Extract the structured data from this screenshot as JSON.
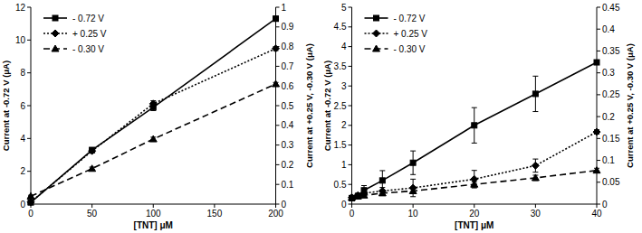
{
  "chart_data": [
    {
      "type": "line",
      "x_label": "[TNT] μM",
      "y_label": "Current at -0.72 V (μA)",
      "y2_label": "Current at +0.25 V, -0.30 V (μA)",
      "xlim": [
        0,
        200
      ],
      "xticks": [
        0,
        50,
        100,
        150,
        200
      ],
      "ylim": [
        0,
        12
      ],
      "yticks": [
        0,
        2,
        4,
        6,
        8,
        10,
        12
      ],
      "y2lim": [
        0,
        1
      ],
      "y2ticks": [
        0,
        0.1,
        0.2,
        0.3,
        0.4,
        0.5,
        0.6,
        0.7,
        0.8,
        0.9,
        1
      ],
      "legend": "upper left",
      "grid": false,
      "x": [
        0,
        50,
        100,
        200
      ],
      "series": [
        {
          "name": "- 0.72 V",
          "color": "#000000",
          "marker": "square",
          "line_style": "solid",
          "values": [
            0.1,
            3.3,
            5.9,
            11.3
          ],
          "errors": [
            0.05,
            0.12,
            0.2,
            0.15
          ]
        },
        {
          "name": "+ 0.25 V",
          "color": "#000000",
          "marker": "diamond",
          "line_style": "dotted",
          "axis": "y2",
          "values": [
            0.01,
            0.27,
            0.51,
            0.79
          ],
          "errors": [
            0.005,
            0.01,
            0.015,
            0.01
          ]
        },
        {
          "name": "- 0.30 V",
          "color": "#000000",
          "marker": "triangle",
          "line_style": "dashed",
          "axis": "y2",
          "values": [
            0.04,
            0.18,
            0.33,
            0.61
          ],
          "errors": [
            0.005,
            0.008,
            0.01,
            0.008
          ]
        }
      ]
    },
    {
      "type": "line",
      "x_label": "[TNT] μM",
      "y_label": "Current at -0.72 V (μA)",
      "y2_label": "Current at +0.25 V, -0.30 V (μA)",
      "xlim": [
        0,
        40
      ],
      "xticks": [
        0,
        10,
        20,
        30,
        40
      ],
      "ylim": [
        0,
        5
      ],
      "yticks": [
        0,
        0.5,
        1,
        1.5,
        2,
        2.5,
        3,
        3.5,
        4,
        4.5,
        5
      ],
      "y2lim": [
        0,
        0.45
      ],
      "y2ticks": [
        0,
        0.05,
        0.1,
        0.15,
        0.2,
        0.25,
        0.3,
        0.35,
        0.4,
        0.45
      ],
      "legend": "upper left",
      "grid": false,
      "x": [
        0,
        1,
        2,
        5,
        10,
        20,
        30,
        40
      ],
      "series": [
        {
          "name": "- 0.72 V",
          "color": "#000000",
          "marker": "square",
          "line_style": "solid",
          "values": [
            0.15,
            0.2,
            0.35,
            0.6,
            1.05,
            2.0,
            2.8,
            3.6
          ],
          "errors": [
            0.05,
            0.05,
            0.12,
            0.25,
            0.3,
            0.45,
            0.45,
            0.05
          ]
        },
        {
          "name": "+ 0.25 V",
          "color": "#000000",
          "marker": "diamond",
          "line_style": "dotted",
          "axis": "y2",
          "values": [
            0.015,
            0.02,
            0.025,
            0.03,
            0.037,
            0.057,
            0.088,
            0.165
          ],
          "errors": [
            0.005,
            0.005,
            0.005,
            0.008,
            0.02,
            0.02,
            0.015,
            0.005
          ]
        },
        {
          "name": "- 0.30 V",
          "color": "#000000",
          "marker": "triangle",
          "line_style": "dashed",
          "axis": "y2",
          "values": [
            0.015,
            0.018,
            0.02,
            0.025,
            0.03,
            0.045,
            0.06,
            0.077
          ],
          "errors": [
            0.003,
            0.003,
            0.004,
            0.005,
            0.005,
            0.006,
            0.006,
            0.005
          ]
        }
      ]
    }
  ]
}
